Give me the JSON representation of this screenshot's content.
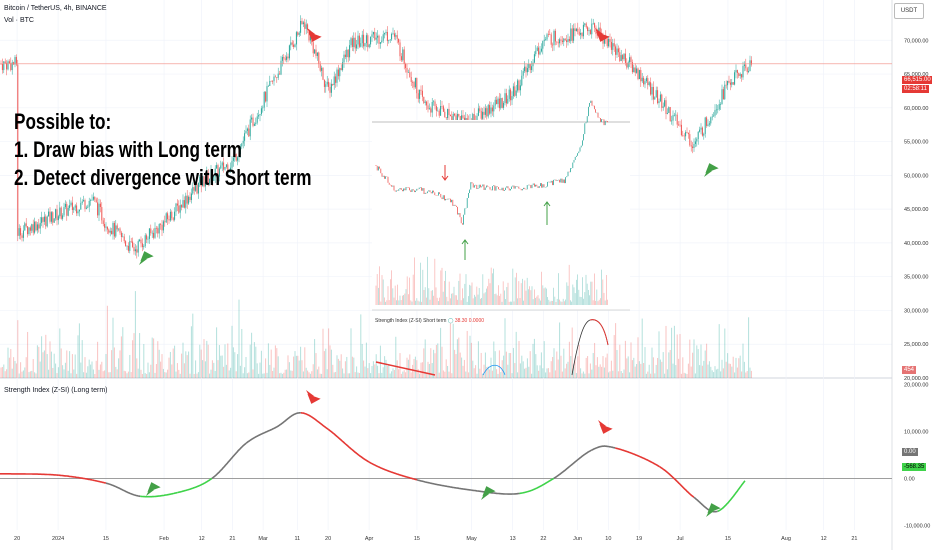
{
  "header": {
    "symbol": "Bitcoin / TetherUS, 4h, BINANCE",
    "volume_label": "Vol · BTC",
    "currency_button": "USDT"
  },
  "annotation": {
    "line1": "Possible to:",
    "line2": "1. Draw bias with Long term",
    "line3": "2. Detect divergence with Short term"
  },
  "price_tags": {
    "last_price": "66,515.00",
    "countdown": "02:58:11",
    "volume_value": "454",
    "indicator_value_1": "0.00",
    "indicator_value_2": "-568.35"
  },
  "inset": {
    "legend_name": "Strength Index (Z-SI) Short term",
    "legend_value_1": "38.30",
    "legend_value_2": "0.0000"
  },
  "colors": {
    "up": "#26a69a",
    "down": "#ef5350",
    "bull": "#3fd34a",
    "bear": "#e53935",
    "neutral": "#757575",
    "arrow_green": "#43a047",
    "arrow_red": "#e53935",
    "price_line": "#f28b82"
  },
  "chart_data": [
    {
      "type": "candlestick",
      "title": "Bitcoin / TetherUS, 4h, BINANCE",
      "y_axis_ticks": [
        "70,000.00",
        "65,000.00",
        "60,000.00",
        "55,000.00",
        "50,000.00",
        "45,000.00",
        "40,000.00",
        "35,000.00",
        "30,000.00",
        "25,000.00",
        "20,000.00"
      ],
      "ylim": [
        20000,
        73000
      ],
      "x_tick_labels": [
        "20",
        "2024",
        "15",
        "Feb",
        "12",
        "21",
        "Mar",
        "11",
        "20",
        "Apr",
        "15",
        "May",
        "13",
        "22",
        "Jun",
        "10",
        "19",
        "Jul",
        "15",
        "Aug",
        "12",
        "21"
      ],
      "close_path": [
        {
          "x": "Dec 20",
          "y": 41500
        },
        {
          "x": "Jan 2",
          "y": 44500
        },
        {
          "x": "Jan 11",
          "y": 46500
        },
        {
          "x": "Jan 15",
          "y": 43000
        },
        {
          "x": "Jan 23",
          "y": 39000
        },
        {
          "x": "Feb 1",
          "y": 43000
        },
        {
          "x": "Feb 12",
          "y": 49000
        },
        {
          "x": "Feb 21",
          "y": 52000
        },
        {
          "x": "Mar 4",
          "y": 64000
        },
        {
          "x": "Mar 13",
          "y": 72800
        },
        {
          "x": "Mar 20",
          "y": 62500
        },
        {
          "x": "Mar 27",
          "y": 69500
        },
        {
          "x": "Apr 8",
          "y": 71000
        },
        {
          "x": "Apr 17",
          "y": 60500
        },
        {
          "x": "Apr 30",
          "y": 58000
        },
        {
          "x": "May 13",
          "y": 62000
        },
        {
          "x": "May 22",
          "y": 70000
        },
        {
          "x": "Jun 6",
          "y": 71800
        },
        {
          "x": "Jun 19",
          "y": 65000
        },
        {
          "x": "Jul 5",
          "y": 54500
        },
        {
          "x": "Jul 15",
          "y": 63500
        },
        {
          "x": "Jul 22",
          "y": 66515
        }
      ],
      "last_price": 66515
    },
    {
      "type": "area",
      "title": "Strength Index (Z-SI) (Long term)",
      "y_axis_ticks": [
        "20,000.00",
        "10,000.00",
        "0.00",
        "-10,000.00"
      ],
      "ylim": [
        -11000,
        21000
      ],
      "x": [
        "Dec 15",
        "Jan 1",
        "Jan 15",
        "Jan 25",
        "Feb 5",
        "Feb 15",
        "Feb 25",
        "Mar 5",
        "Mar 12",
        "Mar 20",
        "Apr 1",
        "Apr 15",
        "May 1",
        "May 15",
        "May 25",
        "Jun 5",
        "Jun 12",
        "Jun 25",
        "Jul 5",
        "Jul 12",
        "Jul 20"
      ],
      "y": [
        1000,
        700,
        -1000,
        -3800,
        -3000,
        0,
        7500,
        11000,
        14000,
        10500,
        3500,
        -300,
        -2500,
        -3200,
        0,
        6000,
        6500,
        2500,
        -4000,
        -7000,
        -500
      ]
    }
  ]
}
